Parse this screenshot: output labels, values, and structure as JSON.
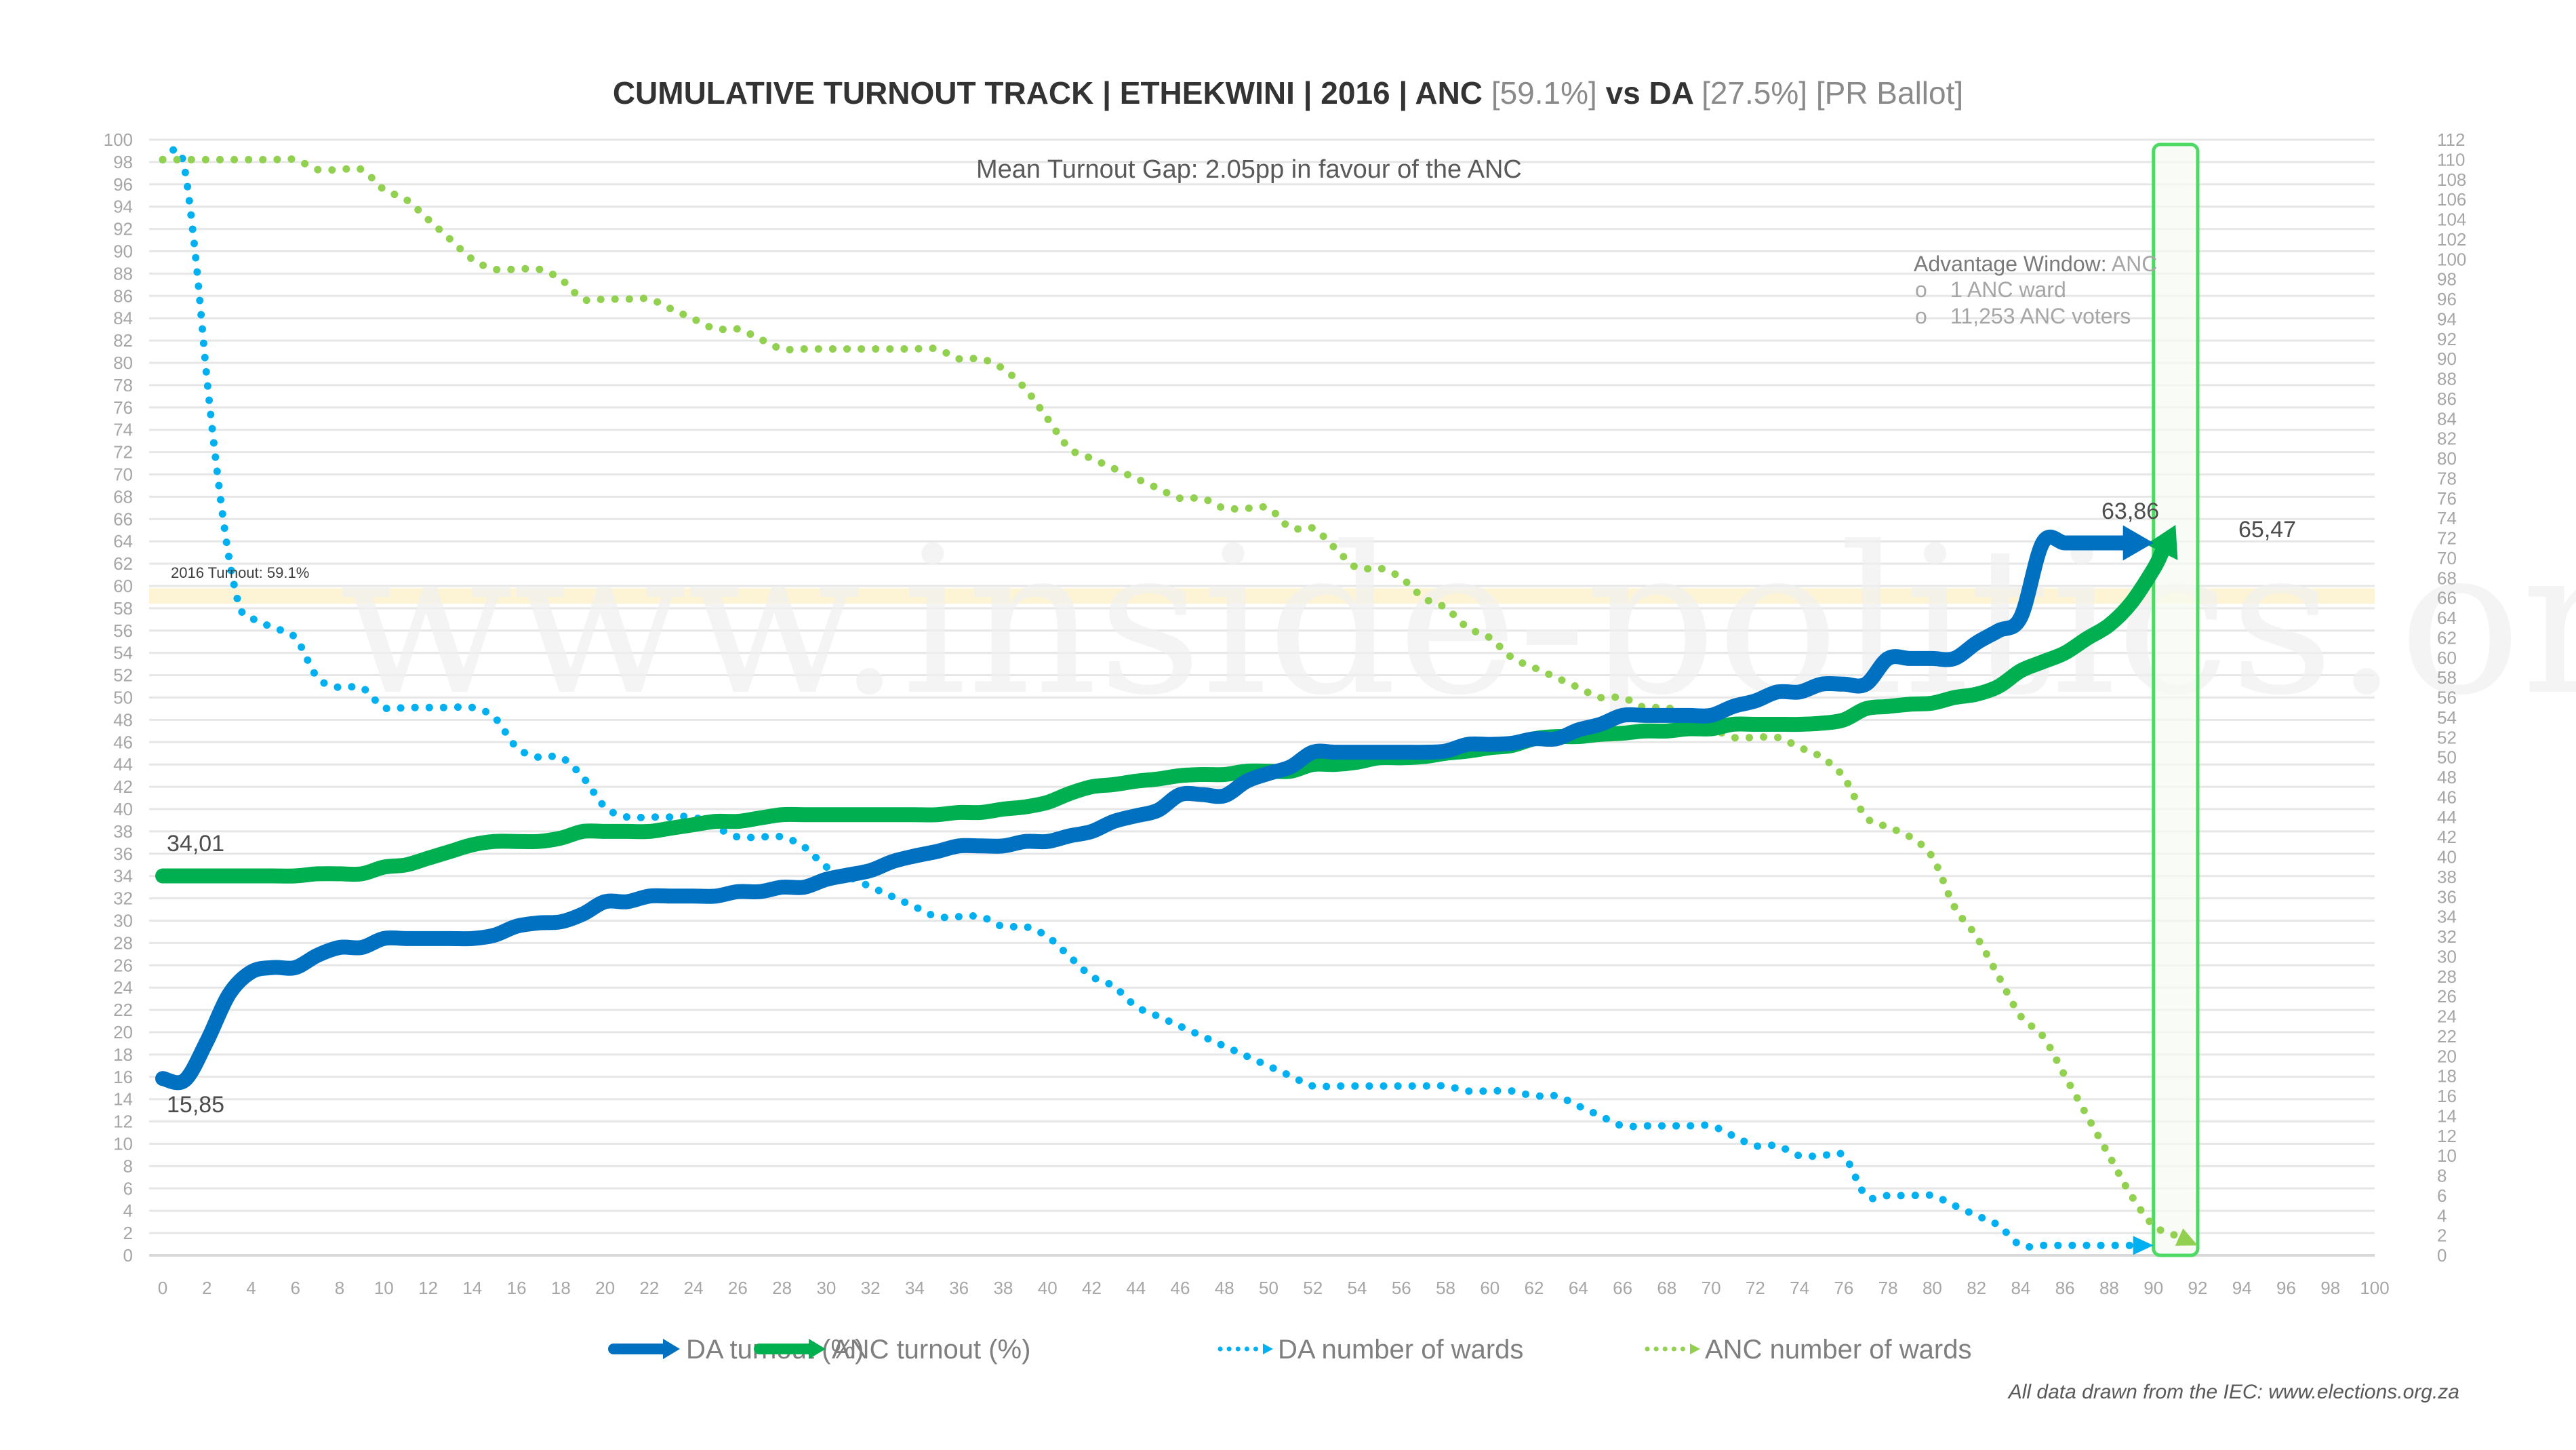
{
  "chart_data": {
    "type": "line",
    "title": {
      "prefix": "CUMULATIVE TURNOUT TRACK | ETHEKWINI | 2016 | ANC ",
      "anc_share": "[59.1%]",
      "middle": " vs DA ",
      "da_share": "[27.5%]",
      "suffix": " [PR Ballot]"
    },
    "subtitle": "Mean Turnout Gap: 2.05pp in favour of the ANC",
    "x_axis": {
      "min": 0,
      "max": 100,
      "step": 2,
      "label": ""
    },
    "y_left": {
      "min": 0,
      "max": 100,
      "step": 2,
      "label": ""
    },
    "y_right": {
      "min": 0,
      "max": 112,
      "step": 2,
      "label": ""
    },
    "grid": true,
    "legend_position": "bottom",
    "reference_band": {
      "label": "2016 Turnout: 59.1%",
      "value": 59.1,
      "color": "#fdf1cc"
    },
    "advantage_window": {
      "title": "Advantage Window: ",
      "party": "ANC",
      "items": [
        "1 ANC ward",
        "11,253 ANC voters"
      ],
      "x_from": 90,
      "x_to": 92,
      "color": "#4cd964"
    },
    "series": [
      {
        "name": "DA turnout (%)",
        "axis": "left",
        "style": "solid",
        "color": "#0070c0",
        "start_label": "15,85",
        "end_label": "63,86",
        "x": [
          0,
          1,
          2,
          3,
          4,
          5,
          6,
          7,
          8,
          9,
          10,
          11,
          12,
          13,
          14,
          15,
          16,
          17,
          18,
          19,
          20,
          21,
          22,
          23,
          24,
          25,
          26,
          27,
          28,
          29,
          30,
          31,
          32,
          33,
          34,
          35,
          36,
          37,
          38,
          39,
          40,
          41,
          42,
          43,
          44,
          45,
          46,
          47,
          48,
          49,
          50,
          51,
          52,
          53,
          54,
          55,
          56,
          57,
          58,
          59,
          60,
          61,
          62,
          63,
          64,
          65,
          66,
          67,
          68,
          69,
          70,
          71,
          72,
          73,
          74,
          75,
          76,
          77,
          78,
          79,
          80,
          81,
          82,
          83,
          84,
          85,
          86,
          87,
          88,
          89,
          90
        ],
        "values": [
          15.85,
          15.7,
          19.2,
          23.4,
          25.4,
          25.8,
          25.8,
          26.9,
          27.6,
          27.6,
          28.4,
          28.4,
          28.4,
          28.4,
          28.4,
          28.7,
          29.5,
          29.8,
          29.9,
          30.6,
          31.7,
          31.7,
          32.2,
          32.2,
          32.2,
          32.2,
          32.6,
          32.6,
          33.0,
          33.0,
          33.7,
          34.1,
          34.5,
          35.3,
          35.8,
          36.2,
          36.7,
          36.7,
          36.7,
          37.1,
          37.1,
          37.6,
          38.0,
          38.9,
          39.4,
          39.9,
          41.3,
          41.3,
          41.2,
          42.5,
          43.2,
          43.8,
          45.1,
          45.1,
          45.1,
          45.1,
          45.1,
          45.1,
          45.2,
          45.8,
          45.8,
          45.9,
          46.3,
          46.3,
          47.1,
          47.6,
          48.4,
          48.4,
          48.4,
          48.4,
          48.4,
          49.2,
          49.7,
          50.5,
          50.5,
          51.2,
          51.2,
          51.2,
          53.5,
          53.5,
          53.5,
          53.5,
          54.9,
          56.0,
          57.2,
          63.9,
          63.86,
          63.86,
          63.86,
          63.86,
          63.86
        ]
      },
      {
        "name": "ANC turnout (%)",
        "axis": "left",
        "style": "solid",
        "color": "#00b050",
        "start_label": "34,01",
        "end_label": "65,47",
        "x": [
          0,
          1,
          2,
          3,
          4,
          5,
          6,
          7,
          8,
          9,
          10,
          11,
          12,
          13,
          14,
          15,
          16,
          17,
          18,
          19,
          20,
          21,
          22,
          23,
          24,
          25,
          26,
          27,
          28,
          29,
          30,
          31,
          32,
          33,
          34,
          35,
          36,
          37,
          38,
          39,
          40,
          41,
          42,
          43,
          44,
          45,
          46,
          47,
          48,
          49,
          50,
          51,
          52,
          53,
          54,
          55,
          56,
          57,
          58,
          59,
          60,
          61,
          62,
          63,
          64,
          65,
          66,
          67,
          68,
          69,
          70,
          71,
          72,
          73,
          74,
          75,
          76,
          77,
          78,
          79,
          80,
          81,
          82,
          83,
          84,
          85,
          86,
          87,
          88,
          89,
          90,
          91
        ],
        "values": [
          34.01,
          34.01,
          34.01,
          34.01,
          34.01,
          34.01,
          34.01,
          34.2,
          34.2,
          34.2,
          34.8,
          35.0,
          35.6,
          36.2,
          36.8,
          37.1,
          37.1,
          37.1,
          37.4,
          38.0,
          38.0,
          38.0,
          38.0,
          38.3,
          38.6,
          38.9,
          38.9,
          39.2,
          39.5,
          39.5,
          39.5,
          39.5,
          39.5,
          39.5,
          39.5,
          39.5,
          39.7,
          39.7,
          40.0,
          40.2,
          40.6,
          41.4,
          42.0,
          42.2,
          42.5,
          42.7,
          43.0,
          43.1,
          43.1,
          43.4,
          43.4,
          43.4,
          44.0,
          44.0,
          44.2,
          44.6,
          44.6,
          44.7,
          45.0,
          45.2,
          45.5,
          45.7,
          46.3,
          46.5,
          46.5,
          46.7,
          46.8,
          47.0,
          47.0,
          47.2,
          47.2,
          47.6,
          47.6,
          47.6,
          47.6,
          47.7,
          48.0,
          49.0,
          49.2,
          49.4,
          49.5,
          50.0,
          50.3,
          51.0,
          52.4,
          53.2,
          54.0,
          55.3,
          56.5,
          58.5,
          61.5,
          65.47
        ]
      },
      {
        "name": "DA number of wards",
        "axis": "right",
        "style": "dotted",
        "color": "#00b0f0",
        "x": [
          0,
          0.6,
          1,
          1.5,
          2,
          2.5,
          3,
          3.5,
          4,
          5,
          6,
          7,
          8,
          9,
          10,
          11,
          12,
          13,
          14,
          15,
          16,
          17,
          18,
          19,
          20,
          21,
          22,
          23,
          24,
          25,
          26,
          27,
          28,
          29,
          30,
          31,
          32,
          33,
          34,
          35,
          36,
          37,
          38,
          39,
          40,
          41,
          42,
          43,
          44,
          45,
          46,
          47,
          48,
          49,
          50,
          51,
          52,
          53,
          54,
          55,
          56,
          57,
          58,
          59,
          60,
          61,
          62,
          63,
          64,
          65,
          66,
          67,
          68,
          69,
          70,
          71,
          72,
          73,
          74,
          75,
          76,
          77,
          78,
          79,
          80,
          81,
          82,
          83,
          84,
          85,
          86,
          87,
          88,
          89,
          90
        ],
        "values": [
          110,
          111,
          109,
          100,
          88,
          78,
          70,
          65,
          64,
          63,
          62,
          58,
          57,
          57,
          55,
          55,
          55,
          55,
          55,
          54,
          51,
          50,
          50,
          48,
          45,
          44,
          44,
          44,
          44,
          43,
          42,
          42,
          42,
          41,
          39,
          38,
          37,
          36,
          35,
          34,
          34,
          34,
          33,
          33,
          32,
          30,
          28,
          27,
          25,
          24,
          23,
          22,
          21,
          20,
          19,
          18,
          17,
          17,
          17,
          17,
          17,
          17,
          17,
          16.5,
          16.5,
          16.5,
          16,
          16,
          15,
          14,
          13,
          13,
          13,
          13,
          13,
          12,
          11,
          11,
          10,
          10,
          10,
          6,
          6,
          6,
          6,
          5,
          4,
          3,
          1,
          1,
          1,
          1,
          1,
          1,
          1
        ],
        "arrow_end_x": 90
      },
      {
        "name": "ANC number of wards",
        "axis": "right",
        "style": "dotted",
        "color": "#92d050",
        "x": [
          0,
          1,
          2,
          3,
          4,
          5,
          6,
          7,
          8,
          9,
          10,
          11,
          12,
          13,
          14,
          15,
          16,
          17,
          18,
          19,
          20,
          21,
          22,
          23,
          24,
          25,
          26,
          27,
          28,
          29,
          30,
          31,
          32,
          33,
          34,
          35,
          36,
          37,
          38,
          39,
          40,
          41,
          42,
          43,
          44,
          45,
          46,
          47,
          48,
          49,
          50,
          51,
          52,
          53,
          54,
          55,
          56,
          57,
          58,
          59,
          60,
          61,
          62,
          63,
          64,
          65,
          66,
          67,
          68,
          69,
          70,
          71,
          72,
          73,
          74,
          75,
          76,
          77,
          78,
          79,
          80,
          81,
          82,
          83,
          84,
          85,
          86,
          87,
          88,
          89,
          90,
          91,
          92
        ],
        "values": [
          110,
          110,
          110,
          110,
          110,
          110,
          110,
          109,
          109,
          109,
          107,
          106,
          104,
          102,
          100,
          99,
          99,
          99,
          98,
          96,
          96,
          96,
          96,
          95,
          94,
          93,
          93,
          92,
          91,
          91,
          91,
          91,
          91,
          91,
          91,
          91,
          90,
          90,
          89,
          87,
          84,
          81,
          80,
          79,
          78,
          77,
          76,
          76,
          75,
          75,
          75,
          73,
          73,
          71,
          69,
          69,
          68,
          66,
          65,
          63,
          62,
          60,
          59,
          58,
          57,
          56,
          56,
          55,
          55,
          54,
          53,
          52,
          52,
          52,
          51,
          50,
          48,
          44,
          43,
          42,
          40,
          35,
          32,
          28,
          24,
          22,
          18,
          14,
          10,
          6,
          3,
          2,
          1
        ],
        "arrow_end_x": 92
      }
    ],
    "data_labels": [
      {
        "series": "DA turnout (%)",
        "x": 0,
        "text": "15,85"
      },
      {
        "series": "ANC turnout (%)",
        "x": 0,
        "text": "34,01"
      },
      {
        "series": "DA turnout (%)",
        "x": 86,
        "text": "63,86"
      },
      {
        "series": "ANC turnout (%)",
        "x": 91,
        "text": "65,47"
      }
    ]
  },
  "watermark": "www.inside-politics.org",
  "legend": [
    {
      "label": "DA turnout (%)",
      "style": "solid",
      "color": "#0070c0"
    },
    {
      "label": "ANC turnout (%)",
      "style": "solid",
      "color": "#00b050"
    },
    {
      "label": "DA number of wards",
      "style": "dotted",
      "color": "#00b0f0"
    },
    {
      "label": "ANC number of wards",
      "style": "dotted",
      "color": "#92d050"
    }
  ],
  "footer": "All data drawn from the IEC: www.elections.org.za"
}
